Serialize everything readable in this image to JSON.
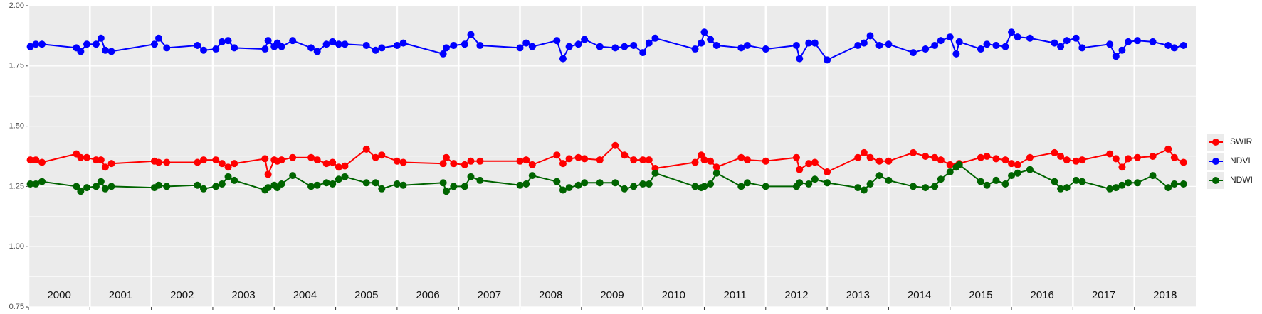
{
  "chart_data": {
    "type": "line",
    "x": [
      2000.03,
      2000.12,
      2000.22,
      2000.78,
      2000.85,
      2000.95,
      2001.1,
      2001.18,
      2001.25,
      2001.35,
      2002.05,
      2002.12,
      2002.25,
      2002.75,
      2002.85,
      2003.05,
      2003.15,
      2003.25,
      2003.35,
      2003.85,
      2003.9,
      2004.0,
      2004.05,
      2004.12,
      2004.3,
      2004.6,
      2004.7,
      2004.85,
      2004.95,
      2005.05,
      2005.15,
      2005.5,
      2005.65,
      2005.75,
      2006.0,
      2006.1,
      2006.75,
      2006.8,
      2006.92,
      2007.1,
      2007.2,
      2007.35,
      2008.0,
      2008.1,
      2008.2,
      2008.6,
      2008.7,
      2008.8,
      2008.95,
      2009.05,
      2009.3,
      2009.55,
      2009.7,
      2009.85,
      2010.0,
      2010.1,
      2010.2,
      2010.85,
      2010.95,
      2011.0,
      2011.1,
      2011.2,
      2011.6,
      2011.7,
      2012.0,
      2012.5,
      2012.55,
      2012.7,
      2012.8,
      2013.0,
      2013.5,
      2013.6,
      2013.7,
      2013.85,
      2014.0,
      2014.4,
      2014.6,
      2014.75,
      2014.85,
      2015.0,
      2015.1,
      2015.15,
      2015.5,
      2015.6,
      2015.75,
      2015.9,
      2016.0,
      2016.1,
      2016.3,
      2016.7,
      2016.8,
      2016.9,
      2017.05,
      2017.15,
      2017.6,
      2017.7,
      2017.8,
      2017.9,
      2018.05,
      2018.3,
      2018.55,
      2018.65,
      2018.8
    ],
    "series": [
      {
        "name": "SWIR",
        "color": "#ff0000",
        "values": [
          1.36,
          1.36,
          1.35,
          1.385,
          1.37,
          1.37,
          1.36,
          1.36,
          1.33,
          1.345,
          1.355,
          1.35,
          1.35,
          1.35,
          1.36,
          1.36,
          1.345,
          1.33,
          1.345,
          1.365,
          1.3,
          1.36,
          1.355,
          1.36,
          1.37,
          1.37,
          1.36,
          1.345,
          1.35,
          1.33,
          1.335,
          1.405,
          1.37,
          1.38,
          1.355,
          1.35,
          1.345,
          1.37,
          1.345,
          1.34,
          1.355,
          1.355,
          1.355,
          1.36,
          1.34,
          1.38,
          1.345,
          1.365,
          1.37,
          1.365,
          1.36,
          1.42,
          1.38,
          1.36,
          1.36,
          1.36,
          1.325,
          1.35,
          1.38,
          1.36,
          1.355,
          1.33,
          1.37,
          1.36,
          1.355,
          1.37,
          1.32,
          1.345,
          1.35,
          1.31,
          1.37,
          1.39,
          1.37,
          1.355,
          1.355,
          1.39,
          1.375,
          1.37,
          1.36,
          1.34,
          1.335,
          1.345,
          1.37,
          1.375,
          1.365,
          1.36,
          1.345,
          1.34,
          1.37,
          1.39,
          1.375,
          1.36,
          1.355,
          1.36,
          1.385,
          1.365,
          1.33,
          1.365,
          1.37,
          1.375,
          1.405,
          1.37,
          1.35
        ]
      },
      {
        "name": "NDVI",
        "color": "#0000ff",
        "values": [
          1.83,
          1.84,
          1.84,
          1.825,
          1.81,
          1.84,
          1.84,
          1.865,
          1.815,
          1.81,
          1.84,
          1.865,
          1.825,
          1.835,
          1.815,
          1.82,
          1.85,
          1.855,
          1.825,
          1.82,
          1.855,
          1.83,
          1.845,
          1.83,
          1.855,
          1.825,
          1.81,
          1.84,
          1.85,
          1.84,
          1.84,
          1.835,
          1.815,
          1.825,
          1.835,
          1.845,
          1.8,
          1.825,
          1.835,
          1.84,
          1.88,
          1.835,
          1.825,
          1.845,
          1.83,
          1.855,
          1.78,
          1.83,
          1.84,
          1.86,
          1.83,
          1.825,
          1.83,
          1.835,
          1.805,
          1.845,
          1.865,
          1.82,
          1.845,
          1.89,
          1.86,
          1.835,
          1.825,
          1.835,
          1.82,
          1.835,
          1.78,
          1.845,
          1.845,
          1.775,
          1.835,
          1.845,
          1.875,
          1.835,
          1.84,
          1.805,
          1.82,
          1.835,
          1.855,
          1.87,
          1.8,
          1.85,
          1.82,
          1.84,
          1.835,
          1.83,
          1.89,
          1.87,
          1.865,
          1.845,
          1.83,
          1.855,
          1.865,
          1.825,
          1.84,
          1.79,
          1.815,
          1.85,
          1.855,
          1.85,
          1.835,
          1.825,
          1.835
        ]
      },
      {
        "name": "NDWI",
        "color": "#006400",
        "values": [
          1.26,
          1.26,
          1.27,
          1.25,
          1.23,
          1.245,
          1.25,
          1.27,
          1.24,
          1.25,
          1.245,
          1.255,
          1.25,
          1.255,
          1.24,
          1.25,
          1.26,
          1.29,
          1.275,
          1.235,
          1.245,
          1.255,
          1.245,
          1.26,
          1.295,
          1.25,
          1.255,
          1.265,
          1.26,
          1.28,
          1.29,
          1.265,
          1.265,
          1.24,
          1.26,
          1.255,
          1.265,
          1.23,
          1.25,
          1.25,
          1.29,
          1.275,
          1.255,
          1.26,
          1.295,
          1.27,
          1.235,
          1.245,
          1.255,
          1.265,
          1.265,
          1.265,
          1.24,
          1.25,
          1.26,
          1.26,
          1.305,
          1.25,
          1.245,
          1.25,
          1.26,
          1.305,
          1.25,
          1.265,
          1.25,
          1.25,
          1.265,
          1.26,
          1.28,
          1.265,
          1.245,
          1.235,
          1.26,
          1.295,
          1.275,
          1.25,
          1.245,
          1.25,
          1.28,
          1.31,
          1.33,
          1.34,
          1.27,
          1.255,
          1.275,
          1.26,
          1.295,
          1.305,
          1.32,
          1.27,
          1.24,
          1.245,
          1.275,
          1.27,
          1.24,
          1.245,
          1.255,
          1.265,
          1.265,
          1.295,
          1.245,
          1.26,
          1.26
        ]
      }
    ],
    "xlim": [
      2000,
      2019
    ],
    "xticks": [
      2000,
      2001,
      2002,
      2003,
      2004,
      2005,
      2006,
      2007,
      2008,
      2009,
      2010,
      2011,
      2012,
      2013,
      2014,
      2015,
      2016,
      2017,
      2018
    ],
    "ylim": [
      0.75,
      2.0
    ],
    "yticks": [
      0.75,
      {
        "value": 1,
        "label": "1.00"
      },
      1.25,
      {
        "value": 1.5,
        "label": "1.50"
      },
      1.75,
      {
        "value": 2,
        "label": "2.00"
      }
    ],
    "grid": true,
    "legend": "right"
  }
}
